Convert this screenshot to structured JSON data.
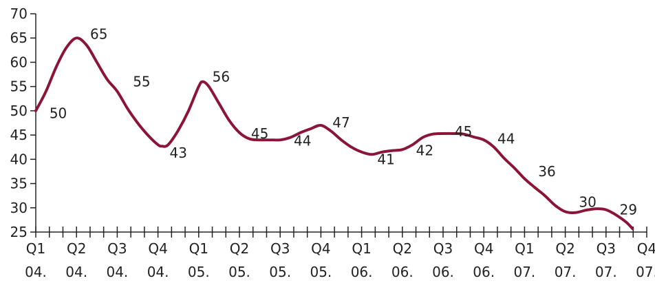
{
  "chart_data": {
    "type": "line",
    "title": "",
    "xlabel": "",
    "ylabel": "",
    "ylim": [
      25,
      70
    ],
    "yticks": [
      25,
      30,
      35,
      40,
      45,
      50,
      55,
      60,
      65,
      70
    ],
    "grid": false,
    "legend": "none",
    "x_categories": [
      {
        "q": "Q1",
        "y": "04."
      },
      {
        "q": "Q2",
        "y": "04."
      },
      {
        "q": "Q3",
        "y": "04."
      },
      {
        "q": "Q4",
        "y": "04."
      },
      {
        "q": "Q1",
        "y": "05."
      },
      {
        "q": "Q2",
        "y": "05."
      },
      {
        "q": "Q3",
        "y": "05."
      },
      {
        "q": "Q4",
        "y": "05."
      },
      {
        "q": "Q1",
        "y": "06."
      },
      {
        "q": "Q2",
        "y": "06."
      },
      {
        "q": "Q3",
        "y": "06."
      },
      {
        "q": "Q4",
        "y": "06."
      },
      {
        "q": "Q1",
        "y": "07."
      },
      {
        "q": "Q2",
        "y": "07."
      },
      {
        "q": "Q3",
        "y": "07."
      },
      {
        "q": "Q4",
        "y": "07."
      }
    ],
    "series": [
      {
        "color": "#8b1538",
        "points": [
          {
            "x": 0.0,
            "y": 50
          },
          {
            "x": 0.25,
            "y": 54
          },
          {
            "x": 0.5,
            "y": 59
          },
          {
            "x": 0.75,
            "y": 63
          },
          {
            "x": 1.0,
            "y": 65
          },
          {
            "x": 1.25,
            "y": 63.5
          },
          {
            "x": 1.5,
            "y": 60
          },
          {
            "x": 1.75,
            "y": 56.5
          },
          {
            "x": 2.0,
            "y": 54
          },
          {
            "x": 2.25,
            "y": 50.5
          },
          {
            "x": 2.5,
            "y": 47.5
          },
          {
            "x": 2.75,
            "y": 45
          },
          {
            "x": 3.0,
            "y": 43
          },
          {
            "x": 3.1,
            "y": 42.7
          },
          {
            "x": 3.25,
            "y": 43
          },
          {
            "x": 3.5,
            "y": 46
          },
          {
            "x": 3.75,
            "y": 50
          },
          {
            "x": 4.0,
            "y": 55
          },
          {
            "x": 4.1,
            "y": 56
          },
          {
            "x": 4.25,
            "y": 55
          },
          {
            "x": 4.5,
            "y": 51.5
          },
          {
            "x": 4.75,
            "y": 48
          },
          {
            "x": 5.0,
            "y": 45.5
          },
          {
            "x": 5.25,
            "y": 44.2
          },
          {
            "x": 5.5,
            "y": 44
          },
          {
            "x": 5.75,
            "y": 44
          },
          {
            "x": 6.0,
            "y": 44
          },
          {
            "x": 6.25,
            "y": 44.5
          },
          {
            "x": 6.5,
            "y": 45.5
          },
          {
            "x": 6.75,
            "y": 46.3
          },
          {
            "x": 7.0,
            "y": 47
          },
          {
            "x": 7.25,
            "y": 45.8
          },
          {
            "x": 7.5,
            "y": 44
          },
          {
            "x": 7.75,
            "y": 42.5
          },
          {
            "x": 8.0,
            "y": 41.5
          },
          {
            "x": 8.25,
            "y": 41
          },
          {
            "x": 8.5,
            "y": 41.5
          },
          {
            "x": 8.75,
            "y": 41.8
          },
          {
            "x": 9.0,
            "y": 42
          },
          {
            "x": 9.25,
            "y": 43
          },
          {
            "x": 9.5,
            "y": 44.5
          },
          {
            "x": 9.75,
            "y": 45.2
          },
          {
            "x": 10.0,
            "y": 45.3
          },
          {
            "x": 10.25,
            "y": 45.3
          },
          {
            "x": 10.5,
            "y": 45.2
          },
          {
            "x": 10.75,
            "y": 44.6
          },
          {
            "x": 11.0,
            "y": 44
          },
          {
            "x": 11.25,
            "y": 42.5
          },
          {
            "x": 11.5,
            "y": 40.2
          },
          {
            "x": 11.75,
            "y": 38.2
          },
          {
            "x": 12.0,
            "y": 36
          },
          {
            "x": 12.25,
            "y": 34.2
          },
          {
            "x": 12.5,
            "y": 32.5
          },
          {
            "x": 12.75,
            "y": 30.5
          },
          {
            "x": 13.0,
            "y": 29.2
          },
          {
            "x": 13.25,
            "y": 29
          },
          {
            "x": 13.5,
            "y": 29.5
          },
          {
            "x": 13.75,
            "y": 29.8
          },
          {
            "x": 14.0,
            "y": 29.6
          },
          {
            "x": 14.25,
            "y": 28.5
          },
          {
            "x": 14.5,
            "y": 27
          },
          {
            "x": 14.65,
            "y": 25.7
          }
        ]
      }
    ],
    "data_labels": [
      {
        "text": "50",
        "x": 0.55,
        "y": 49.5
      },
      {
        "text": "65",
        "x": 1.55,
        "y": 65.8
      },
      {
        "text": "55",
        "x": 2.6,
        "y": 56
      },
      {
        "text": "43",
        "x": 3.5,
        "y": 41.3
      },
      {
        "text": "56",
        "x": 4.55,
        "y": 57
      },
      {
        "text": "45",
        "x": 5.5,
        "y": 45.3
      },
      {
        "text": "44",
        "x": 6.55,
        "y": 43.8
      },
      {
        "text": "47",
        "x": 7.5,
        "y": 47.6
      },
      {
        "text": "41",
        "x": 8.6,
        "y": 40
      },
      {
        "text": "42",
        "x": 9.55,
        "y": 41.8
      },
      {
        "text": "45",
        "x": 10.5,
        "y": 45.7
      },
      {
        "text": "44",
        "x": 11.55,
        "y": 44.2
      },
      {
        "text": "36",
        "x": 12.55,
        "y": 37.5
      },
      {
        "text": "30",
        "x": 13.55,
        "y": 31.2
      },
      {
        "text": "29",
        "x": 14.55,
        "y": 29.6
      }
    ]
  }
}
